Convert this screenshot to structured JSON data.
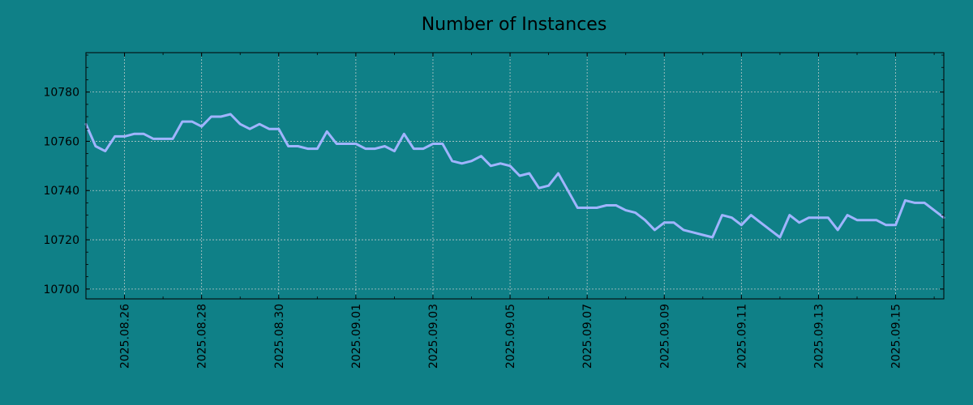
{
  "chart_data": {
    "type": "line",
    "title": "Number of Instances",
    "xlabel": "",
    "ylabel": "",
    "x_ticks": [
      "2025.08.26",
      "2025.08.28",
      "2025.08.30",
      "2025.09.01",
      "2025.09.03",
      "2025.09.05",
      "2025.09.07",
      "2025.09.09",
      "2025.09.11",
      "2025.09.13",
      "2025.09.15"
    ],
    "y_ticks": [
      10700,
      10720,
      10740,
      10760,
      10780
    ],
    "xlim": [
      "2025-08-25",
      "2025-09-16T06:00"
    ],
    "ylim": [
      10696,
      10796
    ],
    "grid": true,
    "colors": {
      "background": "#0f8087",
      "line": "#a0b4ff",
      "grid": "#b8c8c8",
      "axis": "#000000"
    },
    "series": [
      {
        "x": [
          "2025-08-25T00:00",
          "2025-08-25T06:00",
          "2025-08-25T12:00",
          "2025-08-25T18:00",
          "2025-08-26T00:00",
          "2025-08-26T06:00",
          "2025-08-26T12:00",
          "2025-08-26T18:00",
          "2025-08-27T00:00",
          "2025-08-27T06:00",
          "2025-08-27T12:00",
          "2025-08-27T18:00",
          "2025-08-28T00:00",
          "2025-08-28T06:00",
          "2025-08-28T12:00",
          "2025-08-28T18:00",
          "2025-08-29T00:00",
          "2025-08-29T06:00",
          "2025-08-29T12:00",
          "2025-08-29T18:00",
          "2025-08-30T00:00",
          "2025-08-30T06:00",
          "2025-08-30T12:00",
          "2025-08-30T18:00",
          "2025-08-31T00:00",
          "2025-08-31T06:00",
          "2025-08-31T12:00",
          "2025-08-31T18:00",
          "2025-09-01T00:00",
          "2025-09-01T06:00",
          "2025-09-01T12:00",
          "2025-09-01T18:00",
          "2025-09-02T00:00",
          "2025-09-02T06:00",
          "2025-09-02T12:00",
          "2025-09-02T18:00",
          "2025-09-03T00:00",
          "2025-09-03T06:00",
          "2025-09-03T12:00",
          "2025-09-03T18:00",
          "2025-09-04T00:00",
          "2025-09-04T06:00",
          "2025-09-04T12:00",
          "2025-09-04T18:00",
          "2025-09-05T00:00",
          "2025-09-05T06:00",
          "2025-09-05T12:00",
          "2025-09-05T18:00",
          "2025-09-06T00:00",
          "2025-09-06T06:00",
          "2025-09-06T12:00",
          "2025-09-06T18:00",
          "2025-09-07T00:00",
          "2025-09-07T06:00",
          "2025-09-07T12:00",
          "2025-09-07T18:00",
          "2025-09-08T00:00",
          "2025-09-08T06:00",
          "2025-09-08T12:00",
          "2025-09-08T18:00",
          "2025-09-09T00:00",
          "2025-09-09T06:00",
          "2025-09-09T12:00",
          "2025-09-09T18:00",
          "2025-09-10T00:00",
          "2025-09-10T06:00",
          "2025-09-10T12:00",
          "2025-09-10T18:00",
          "2025-09-11T00:00",
          "2025-09-11T06:00",
          "2025-09-11T12:00",
          "2025-09-11T18:00",
          "2025-09-12T00:00",
          "2025-09-12T06:00",
          "2025-09-12T12:00",
          "2025-09-12T18:00",
          "2025-09-13T00:00",
          "2025-09-13T06:00",
          "2025-09-13T12:00",
          "2025-09-13T18:00",
          "2025-09-14T00:00",
          "2025-09-14T06:00",
          "2025-09-14T12:00",
          "2025-09-14T18:00",
          "2025-09-15T00:00",
          "2025-09-15T06:00",
          "2025-09-15T12:00",
          "2025-09-15T18:00",
          "2025-09-16T00:00",
          "2025-09-16T06:00"
        ],
        "values": [
          10767,
          10758,
          10756,
          10762,
          10762,
          10763,
          10763,
          10761,
          10761,
          10761,
          10768,
          10768,
          10766,
          10770,
          10770,
          10771,
          10767,
          10765,
          10767,
          10765,
          10765,
          10758,
          10758,
          10757,
          10757,
          10764,
          10759,
          10759,
          10759,
          10757,
          10757,
          10758,
          10756,
          10763,
          10757,
          10757,
          10759,
          10759,
          10752,
          10751,
          10752,
          10754,
          10750,
          10751,
          10750,
          10746,
          10747,
          10741,
          10742,
          10747,
          10740,
          10733,
          10733,
          10733,
          10734,
          10734,
          10732,
          10731,
          10728,
          10724,
          10727,
          10727,
          10724,
          10723,
          10722,
          10721,
          10730,
          10729,
          10726,
          10730,
          10727,
          10724,
          10721,
          10730,
          10727,
          10729,
          10729,
          10729,
          10724,
          10730,
          10728,
          10728,
          10728,
          10726,
          10726,
          10736,
          10735,
          10735,
          10732,
          10729
        ]
      }
    ]
  }
}
